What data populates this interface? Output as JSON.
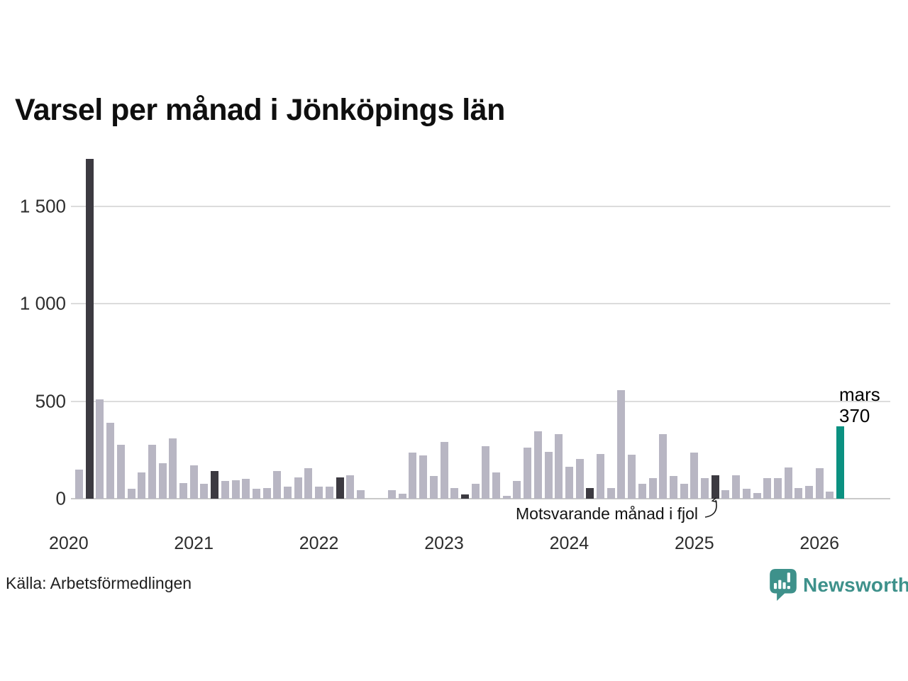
{
  "title": "Varsel per månad i Jönköpings län",
  "source_label": "Källa: Arbetsförmedlingen",
  "annotation": {
    "text": "Motsvarande månad i fjol"
  },
  "highlight_label": {
    "month": "mars",
    "value": "370"
  },
  "branding": {
    "name": "Newsworthy",
    "color": "#3e918b"
  },
  "colors": {
    "bar_default": "#b8b6c3",
    "bar_fjol": "#3c3a41",
    "bar_highlight": "#0b9181",
    "gridline": "#dcdcdc",
    "axis_text": "#2d2d2d"
  },
  "chart_data": {
    "type": "bar",
    "title": "Varsel per månad i Jönköpings län",
    "xlabel": "",
    "ylabel": "",
    "ylim": [
      0,
      1740
    ],
    "yticks": [
      0,
      500,
      1000,
      1500
    ],
    "ytick_labels": [
      "0",
      "500",
      "1 000",
      "1 500"
    ],
    "grid": true,
    "legend_position": "none",
    "years": [
      "2020",
      "2021",
      "2022",
      "2023",
      "2024",
      "2025",
      "2026"
    ],
    "kinds_note": "default = ordinary month, fjol = same month previous years (dark), highlight = latest month (teal)",
    "months": [
      {
        "month": "2020-02",
        "value": 150,
        "kind": "default"
      },
      {
        "month": "2020-03",
        "value": 1740,
        "kind": "fjol"
      },
      {
        "month": "2020-04",
        "value": 510,
        "kind": "default"
      },
      {
        "month": "2020-05",
        "value": 390,
        "kind": "default"
      },
      {
        "month": "2020-06",
        "value": 275,
        "kind": "default"
      },
      {
        "month": "2020-07",
        "value": 50,
        "kind": "default"
      },
      {
        "month": "2020-08",
        "value": 135,
        "kind": "default"
      },
      {
        "month": "2020-09",
        "value": 275,
        "kind": "default"
      },
      {
        "month": "2020-10",
        "value": 180,
        "kind": "default"
      },
      {
        "month": "2020-11",
        "value": 310,
        "kind": "default"
      },
      {
        "month": "2020-12",
        "value": 80,
        "kind": "default"
      },
      {
        "month": "2021-01",
        "value": 170,
        "kind": "default"
      },
      {
        "month": "2021-02",
        "value": 75,
        "kind": "default"
      },
      {
        "month": "2021-03",
        "value": 140,
        "kind": "fjol"
      },
      {
        "month": "2021-04",
        "value": 90,
        "kind": "default"
      },
      {
        "month": "2021-05",
        "value": 95,
        "kind": "default"
      },
      {
        "month": "2021-06",
        "value": 100,
        "kind": "default"
      },
      {
        "month": "2021-07",
        "value": 50,
        "kind": "default"
      },
      {
        "month": "2021-08",
        "value": 55,
        "kind": "default"
      },
      {
        "month": "2021-09",
        "value": 140,
        "kind": "default"
      },
      {
        "month": "2021-10",
        "value": 60,
        "kind": "default"
      },
      {
        "month": "2021-11",
        "value": 110,
        "kind": "default"
      },
      {
        "month": "2021-12",
        "value": 155,
        "kind": "default"
      },
      {
        "month": "2022-01",
        "value": 60,
        "kind": "default"
      },
      {
        "month": "2022-02",
        "value": 60,
        "kind": "default"
      },
      {
        "month": "2022-03",
        "value": 110,
        "kind": "fjol"
      },
      {
        "month": "2022-04",
        "value": 120,
        "kind": "default"
      },
      {
        "month": "2022-05",
        "value": 45,
        "kind": "default"
      },
      {
        "month": "2022-06",
        "value": 0,
        "kind": "default"
      },
      {
        "month": "2022-07",
        "value": 0,
        "kind": "default"
      },
      {
        "month": "2022-08",
        "value": 45,
        "kind": "default"
      },
      {
        "month": "2022-09",
        "value": 25,
        "kind": "default"
      },
      {
        "month": "2022-10",
        "value": 235,
        "kind": "default"
      },
      {
        "month": "2022-11",
        "value": 220,
        "kind": "default"
      },
      {
        "month": "2022-12",
        "value": 115,
        "kind": "default"
      },
      {
        "month": "2023-01",
        "value": 290,
        "kind": "default"
      },
      {
        "month": "2023-02",
        "value": 55,
        "kind": "default"
      },
      {
        "month": "2023-03",
        "value": 20,
        "kind": "fjol"
      },
      {
        "month": "2023-04",
        "value": 75,
        "kind": "default"
      },
      {
        "month": "2023-05",
        "value": 270,
        "kind": "default"
      },
      {
        "month": "2023-06",
        "value": 135,
        "kind": "default"
      },
      {
        "month": "2023-07",
        "value": 15,
        "kind": "default"
      },
      {
        "month": "2023-08",
        "value": 90,
        "kind": "default"
      },
      {
        "month": "2023-09",
        "value": 260,
        "kind": "default"
      },
      {
        "month": "2023-10",
        "value": 345,
        "kind": "default"
      },
      {
        "month": "2023-11",
        "value": 240,
        "kind": "default"
      },
      {
        "month": "2023-12",
        "value": 330,
        "kind": "default"
      },
      {
        "month": "2024-01",
        "value": 165,
        "kind": "default"
      },
      {
        "month": "2024-02",
        "value": 205,
        "kind": "default"
      },
      {
        "month": "2024-03",
        "value": 55,
        "kind": "fjol"
      },
      {
        "month": "2024-04",
        "value": 230,
        "kind": "default"
      },
      {
        "month": "2024-05",
        "value": 55,
        "kind": "default"
      },
      {
        "month": "2024-06",
        "value": 555,
        "kind": "default"
      },
      {
        "month": "2024-07",
        "value": 225,
        "kind": "default"
      },
      {
        "month": "2024-08",
        "value": 75,
        "kind": "default"
      },
      {
        "month": "2024-09",
        "value": 105,
        "kind": "default"
      },
      {
        "month": "2024-10",
        "value": 330,
        "kind": "default"
      },
      {
        "month": "2024-11",
        "value": 115,
        "kind": "default"
      },
      {
        "month": "2024-12",
        "value": 75,
        "kind": "default"
      },
      {
        "month": "2025-01",
        "value": 235,
        "kind": "default"
      },
      {
        "month": "2025-02",
        "value": 105,
        "kind": "default"
      },
      {
        "month": "2025-03",
        "value": 120,
        "kind": "fjol"
      },
      {
        "month": "2025-04",
        "value": 45,
        "kind": "default"
      },
      {
        "month": "2025-05",
        "value": 120,
        "kind": "default"
      },
      {
        "month": "2025-06",
        "value": 50,
        "kind": "default"
      },
      {
        "month": "2025-07",
        "value": 30,
        "kind": "default"
      },
      {
        "month": "2025-08",
        "value": 105,
        "kind": "default"
      },
      {
        "month": "2025-09",
        "value": 105,
        "kind": "default"
      },
      {
        "month": "2025-10",
        "value": 160,
        "kind": "default"
      },
      {
        "month": "2025-11",
        "value": 55,
        "kind": "default"
      },
      {
        "month": "2025-12",
        "value": 65,
        "kind": "default"
      },
      {
        "month": "2026-01",
        "value": 155,
        "kind": "default"
      },
      {
        "month": "2026-02",
        "value": 35,
        "kind": "default"
      },
      {
        "month": "2026-03",
        "value": 370,
        "kind": "highlight"
      }
    ]
  }
}
